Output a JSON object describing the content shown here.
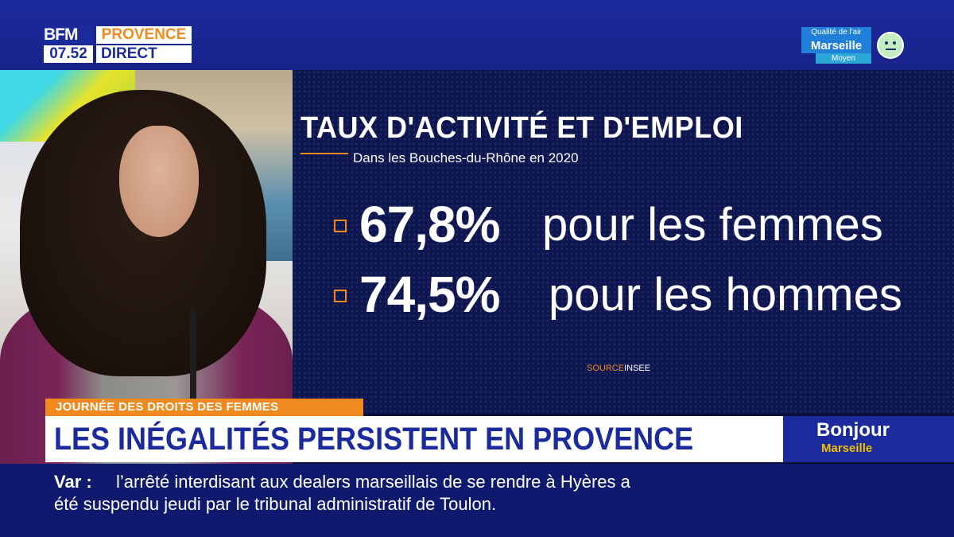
{
  "logo": {
    "brand": "BFM",
    "region": "PROVENCE",
    "time": "07.52",
    "live": "DIRECT"
  },
  "air_quality": {
    "title": "Qualité de l'air",
    "city": "Marseille",
    "level": "Moyen",
    "icon": "neutral-face-icon"
  },
  "graphic": {
    "title": "TAUX D'ACTIVITÉ ET D'EMPLOI",
    "subtitle": "Dans les Bouches-du-Rhône en 2020",
    "stats": [
      {
        "value": "67,8%",
        "label": "pour les femmes"
      },
      {
        "value": "74,5%",
        "label": "pour les hommes"
      }
    ],
    "source_prefix": "SOURCE",
    "source_name": "INSEE"
  },
  "banner": {
    "tag": "JOURNÉE DES DROITS DES FEMMES",
    "headline": "LES INÉGALITÉS PERSISTENT EN PROVENCE"
  },
  "show": {
    "title": "Bonjour",
    "city": "Marseille"
  },
  "ticker": {
    "label": "Var :",
    "line1": "l’arrêté interdisant aux dealers marseillais de se rendre à Hyères a",
    "line2": "été suspendu jeudi par le tribunal administratif de Toulon."
  },
  "colors": {
    "brand_blue": "#1b2a9c",
    "accent_orange": "#f08a1e",
    "show_yellow": "#f2c200"
  }
}
